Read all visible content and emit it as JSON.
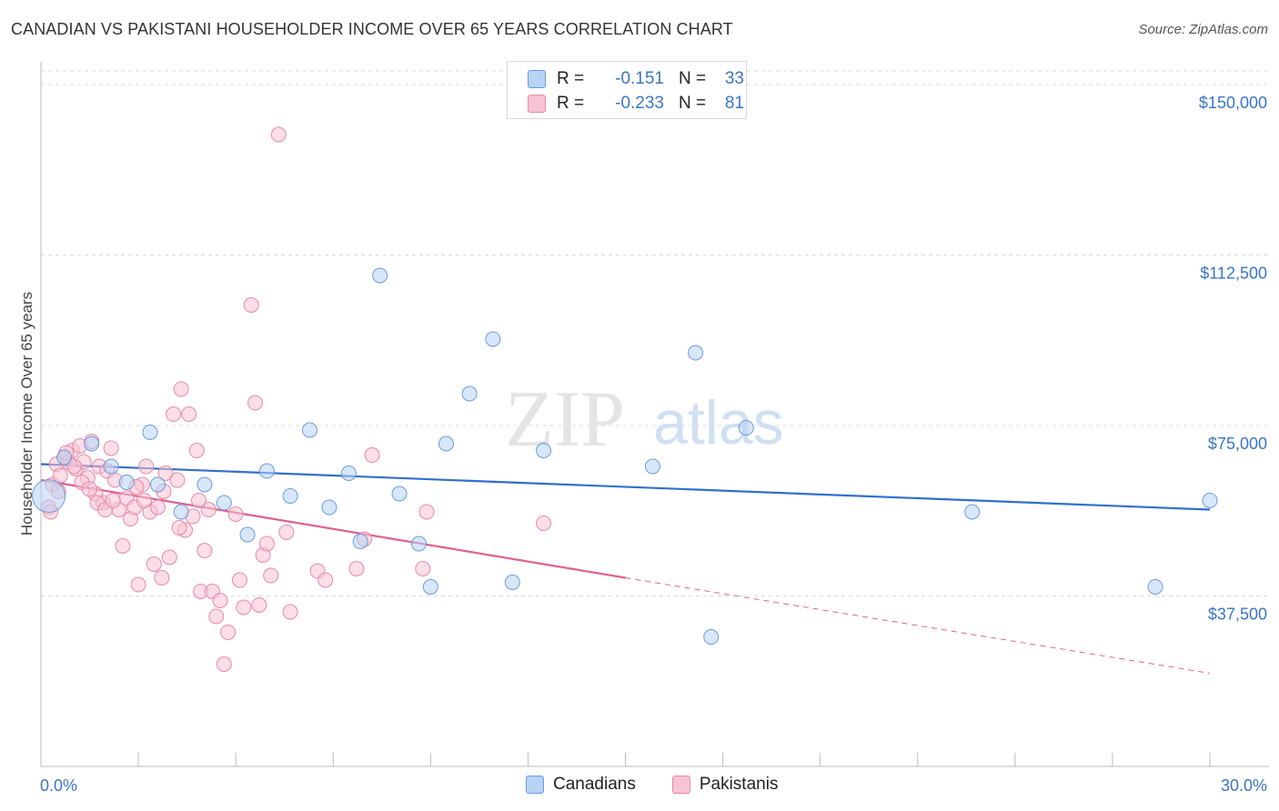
{
  "title": "CANADIAN VS PAKISTANI HOUSEHOLDER INCOME OVER 65 YEARS CORRELATION CHART",
  "source": "Source: ZipAtlas.com",
  "watermark": {
    "zip": "ZIP",
    "atlas": "atlas"
  },
  "legend": {
    "canadians": {
      "r_label": "R =",
      "r_value": "-0.151",
      "n_label": "N =",
      "n_value": "33"
    },
    "pakistanis": {
      "r_label": "R =",
      "r_value": "-0.233",
      "n_label": "N =",
      "n_value": "81"
    }
  },
  "bottom_legend": {
    "canadians": "Canadians",
    "pakistanis": "Pakistanis"
  },
  "colors": {
    "canadians_fill": "#b8d3f3",
    "canadians_stroke": "#6b9be0",
    "canadians_line": "#2f6fd0",
    "pakistanis_fill": "#f8c3d4",
    "pakistanis_stroke": "#e889a8",
    "pakistanis_line": "#e0608f",
    "grid": "#d9d9d9",
    "tick_text": "#3a74c9"
  },
  "chart_data": {
    "type": "scatter",
    "xlabel": "",
    "ylabel": "Householder Income Over 65 years",
    "xlim": [
      0,
      30
    ],
    "ylim": [
      0,
      153000
    ],
    "x_tick_labels": [
      {
        "value": 0,
        "label": "0.0%"
      },
      {
        "value": 30,
        "label": "30.0%"
      }
    ],
    "y_ticks": [
      {
        "value": 37500,
        "label": "$37,500"
      },
      {
        "value": 75000,
        "label": "$75,000"
      },
      {
        "value": 112500,
        "label": "$112,500"
      },
      {
        "value": 150000,
        "label": "$150,000"
      }
    ],
    "grid": true,
    "series": [
      {
        "name": "Canadians",
        "trend": {
          "x": [
            0,
            30
          ],
          "y": [
            66500,
            56500
          ]
        },
        "points": [
          [
            0.2,
            59500
          ],
          [
            1.8,
            66000
          ],
          [
            2.8,
            73500
          ],
          [
            3.0,
            62000
          ],
          [
            3.6,
            56000
          ],
          [
            4.2,
            62000
          ],
          [
            4.7,
            58000
          ],
          [
            5.3,
            51000
          ],
          [
            5.8,
            65000
          ],
          [
            6.4,
            59500
          ],
          [
            6.9,
            74000
          ],
          [
            7.4,
            57000
          ],
          [
            7.9,
            64500
          ],
          [
            8.2,
            49500
          ],
          [
            8.7,
            108000
          ],
          [
            9.2,
            60000
          ],
          [
            9.7,
            49000
          ],
          [
            10.0,
            39500
          ],
          [
            10.4,
            71000
          ],
          [
            11.0,
            82000
          ],
          [
            11.6,
            94000
          ],
          [
            12.1,
            40500
          ],
          [
            12.9,
            69500
          ],
          [
            15.7,
            66000
          ],
          [
            16.8,
            91000
          ],
          [
            17.2,
            28500
          ],
          [
            18.1,
            74500
          ],
          [
            23.9,
            56000
          ],
          [
            28.6,
            39500
          ],
          [
            30.0,
            58500
          ],
          [
            0.6,
            68000
          ],
          [
            1.3,
            71000
          ],
          [
            2.2,
            62500
          ]
        ]
      },
      {
        "name": "Pakistanis",
        "trend": {
          "x": [
            0,
            15
          ],
          "y": [
            63000,
            41500
          ]
        },
        "trend_dashed": {
          "x": [
            15,
            30
          ],
          "y": [
            41500,
            20500
          ]
        },
        "points": [
          [
            0.2,
            57000
          ],
          [
            0.3,
            62000
          ],
          [
            0.4,
            66500
          ],
          [
            0.5,
            64000
          ],
          [
            0.6,
            68000
          ],
          [
            0.7,
            67000
          ],
          [
            0.8,
            69500
          ],
          [
            0.9,
            65500
          ],
          [
            1.0,
            70500
          ],
          [
            1.1,
            67000
          ],
          [
            1.2,
            63500
          ],
          [
            1.3,
            71500
          ],
          [
            1.4,
            60000
          ],
          [
            1.5,
            66000
          ],
          [
            1.6,
            58000
          ],
          [
            1.7,
            65000
          ],
          [
            1.8,
            70000
          ],
          [
            1.9,
            63000
          ],
          [
            2.0,
            56500
          ],
          [
            2.1,
            48500
          ],
          [
            2.2,
            59000
          ],
          [
            2.3,
            54500
          ],
          [
            2.4,
            57000
          ],
          [
            2.5,
            40000
          ],
          [
            2.6,
            62000
          ],
          [
            2.7,
            66000
          ],
          [
            2.8,
            56000
          ],
          [
            2.9,
            44500
          ],
          [
            3.0,
            57000
          ],
          [
            3.1,
            41500
          ],
          [
            3.2,
            64500
          ],
          [
            3.3,
            46000
          ],
          [
            3.4,
            77500
          ],
          [
            3.5,
            63000
          ],
          [
            3.6,
            83000
          ],
          [
            3.7,
            52000
          ],
          [
            3.8,
            77500
          ],
          [
            3.9,
            55000
          ],
          [
            4.0,
            69500
          ],
          [
            4.1,
            38500
          ],
          [
            4.2,
            47500
          ],
          [
            4.3,
            56500
          ],
          [
            4.4,
            38500
          ],
          [
            4.5,
            33000
          ],
          [
            4.6,
            36500
          ],
          [
            4.7,
            22500
          ],
          [
            4.8,
            29500
          ],
          [
            5.0,
            55500
          ],
          [
            5.1,
            41000
          ],
          [
            5.2,
            35000
          ],
          [
            5.4,
            101500
          ],
          [
            5.5,
            80000
          ],
          [
            5.6,
            35500
          ],
          [
            5.7,
            46500
          ],
          [
            5.8,
            49000
          ],
          [
            5.9,
            42000
          ],
          [
            6.1,
            139000
          ],
          [
            6.3,
            51500
          ],
          [
            6.4,
            34000
          ],
          [
            7.1,
            43000
          ],
          [
            7.3,
            41000
          ],
          [
            8.1,
            43500
          ],
          [
            8.3,
            50000
          ],
          [
            8.5,
            68500
          ],
          [
            9.8,
            43500
          ],
          [
            9.9,
            56000
          ],
          [
            12.9,
            53500
          ],
          [
            0.25,
            56000
          ],
          [
            0.45,
            60500
          ],
          [
            0.65,
            69000
          ],
          [
            0.85,
            66000
          ],
          [
            1.05,
            62500
          ],
          [
            1.25,
            61000
          ],
          [
            1.45,
            58000
          ],
          [
            1.65,
            56500
          ],
          [
            1.85,
            58500
          ],
          [
            2.45,
            61500
          ],
          [
            2.65,
            58500
          ],
          [
            3.15,
            60500
          ],
          [
            3.55,
            52500
          ],
          [
            4.05,
            58500
          ]
        ]
      }
    ]
  }
}
